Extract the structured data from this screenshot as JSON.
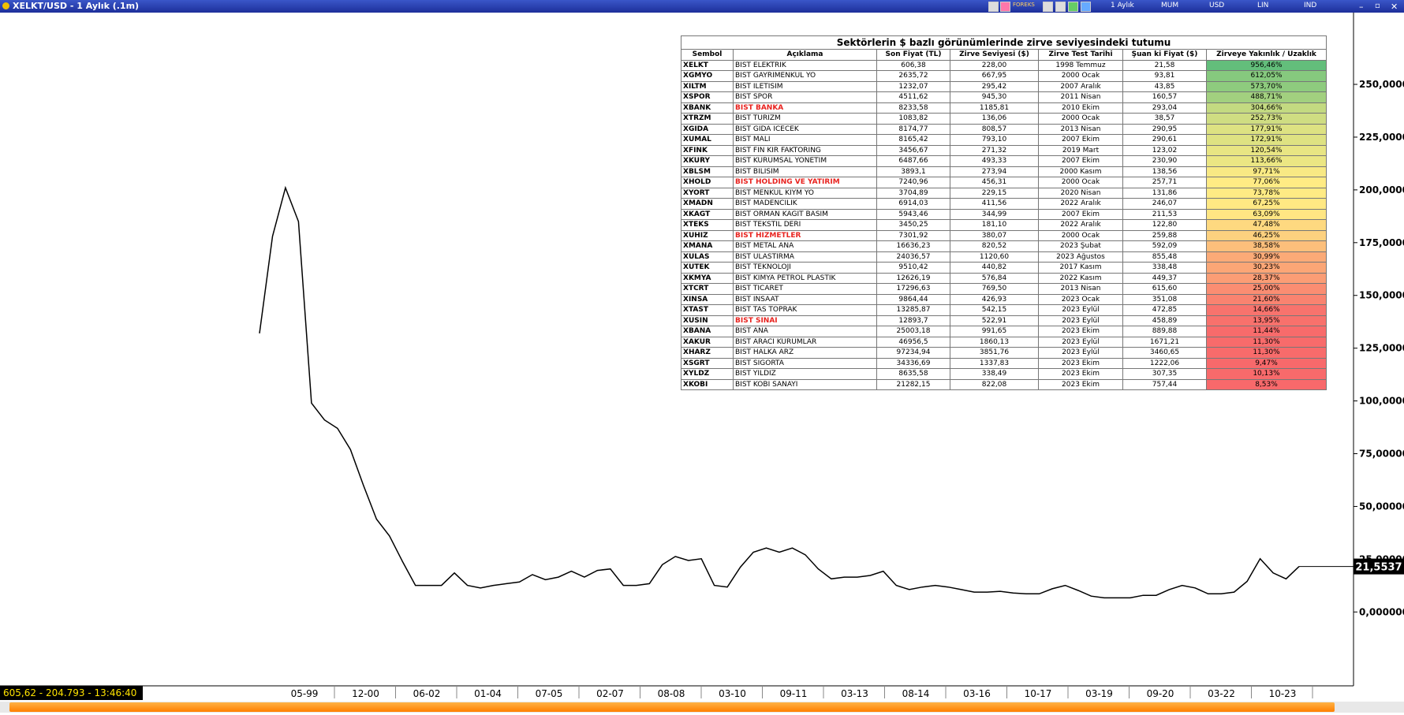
{
  "window": {
    "title": "XELKT/USD - 1 Aylık (.1m)",
    "toolbar": [
      "FOREKS",
      "1 Aylık",
      "MUM",
      "USD",
      "LIN",
      "IND"
    ]
  },
  "status": "605,62 - 204.793 - 13:46:40",
  "chart_data": {
    "type": "line",
    "color": "#000000",
    "x_labels": [
      "05-99",
      "12-00",
      "06-02",
      "01-04",
      "07-05",
      "02-07",
      "08-08",
      "03-10",
      "09-11",
      "03-13",
      "08-14",
      "03-16",
      "10-17",
      "03-19",
      "09-20",
      "03-22",
      "10-23"
    ],
    "values": [
      132,
      178,
      201,
      185,
      99,
      91,
      87,
      77,
      60,
      44,
      36,
      24,
      12.6,
      12.6,
      12.6,
      18.5,
      12.6,
      11.4,
      12.6,
      13.4,
      14.2,
      17.7,
      15.3,
      16.5,
      19.3,
      16.5,
      19.7,
      20.4,
      12.6,
      12.6,
      13.4,
      22.4,
      26.3,
      24.4,
      25.2,
      12.6,
      11.8,
      21.2,
      28.3,
      30.3,
      28.3,
      30.3,
      27.1,
      20.4,
      15.7,
      16.5,
      16.5,
      17.3,
      19.3,
      12.6,
      10.6,
      11.8,
      12.6,
      11.8,
      10.6,
      9.4,
      9.4,
      9.8,
      9.0,
      8.6,
      8.6,
      11.0,
      12.6,
      10.2,
      7.5,
      6.7,
      6.7,
      6.7,
      7.9,
      7.9,
      10.6,
      12.6,
      11.4,
      8.6,
      8.6,
      9.4,
      14.5,
      25.2,
      18.5,
      15.7,
      21.5537
    ],
    "value_labels": {
      "last": "21,5537"
    },
    "ylim": [
      -35,
      284
    ],
    "yticks": [
      {
        "value": 0,
        "label": "0,000000"
      },
      {
        "value": 25,
        "label": "25,00000"
      },
      {
        "value": 50,
        "label": "50,00000"
      },
      {
        "value": 75,
        "label": "75,00000"
      },
      {
        "value": 100,
        "label": "100,0000"
      },
      {
        "value": 125,
        "label": "125,0000"
      },
      {
        "value": 150,
        "label": "150,0000"
      },
      {
        "value": 175,
        "label": "175,0000"
      },
      {
        "value": 200,
        "label": "200,0000"
      },
      {
        "value": 225,
        "label": "225,0000"
      },
      {
        "value": 250,
        "label": "250,0000"
      }
    ]
  },
  "table": {
    "title": "Sektörlerin $ bazlı görünümlerinde zirve seviyesindeki tutumu",
    "header": [
      "Sembol",
      "Açıklama",
      "Son Fiyat (TL)",
      "Zirve Seviyesi ($)",
      "Zirve Test Tarihi",
      "Şuan ki Fiyat ($)",
      "Zirveye Yakınlık /  Uzaklık"
    ],
    "highlight_color": "#e8231f",
    "rows": [
      {
        "cells": [
          "XELKT",
          "BIST ELEKTRIK",
          "606,38",
          "228,00",
          "1998 Temmuz",
          "21,58",
          "956,46%"
        ],
        "fill": "#63be7b"
      },
      {
        "cells": [
          "XGMYO",
          "BIST GAYRIMENKUL YO",
          "2635,72",
          "667,95",
          "2000 Ocak",
          "93,81",
          "612,05%"
        ],
        "fill": "#86c97e"
      },
      {
        "cells": [
          "XILTM",
          "BIST ILETISIM",
          "1232,07",
          "295,42",
          "2007 Aralık",
          "43,85",
          "573,70%"
        ],
        "fill": "#8ecb7e"
      },
      {
        "cells": [
          "XSPOR",
          "BIST SPOR",
          "4511,62",
          "945,30",
          "2011 Nisan",
          "160,57",
          "488,71%"
        ],
        "fill": "#a2d07f"
      },
      {
        "cells": [
          "XBANK",
          "BIST BANKA",
          "8233,58",
          "1185,81",
          "2010 Ekim",
          "293,04",
          "304,66%"
        ],
        "fill": "#c3da81",
        "highlight": true
      },
      {
        "cells": [
          "XTRZM",
          "BIST TURIZM",
          "1083,82",
          "136,06",
          "2000 Ocak",
          "38,57",
          "252,73%"
        ],
        "fill": "#cfdd82"
      },
      {
        "cells": [
          "XGIDA",
          "BIST GIDA ICECEK",
          "8174,77",
          "808,57",
          "2013 Nisan",
          "290,95",
          "177,91%"
        ],
        "fill": "#dde282"
      },
      {
        "cells": [
          "XUMAL",
          "BIST MALI",
          "8165,42",
          "793,10",
          "2007 Ekim",
          "290,61",
          "172,91%"
        ],
        "fill": "#dee282"
      },
      {
        "cells": [
          "XFINK",
          "BIST FIN KIR FAKTORING",
          "3456,67",
          "271,32",
          "2019 Mart",
          "123,02",
          "120,54%"
        ],
        "fill": "#e8e583"
      },
      {
        "cells": [
          "XKURY",
          "BIST KURUMSAL YONETIM",
          "6487,66",
          "493,33",
          "2007 Ekim",
          "230,90",
          "113,66%"
        ],
        "fill": "#ebe683"
      },
      {
        "cells": [
          "XBLSM",
          "BIST BILISIM",
          "3893,1",
          "273,94",
          "2000 Kasım",
          "138,56",
          "97,71%"
        ],
        "fill": "#f8e984"
      },
      {
        "cells": [
          "XHOLD",
          "BIST HOLDING VE YATIRIM",
          "7240,96",
          "456,31",
          "2000 Ocak",
          "257,71",
          "77,06%"
        ],
        "fill": "#ffeb84",
        "highlight": true
      },
      {
        "cells": [
          "XYORT",
          "BIST MENKUL KIYM YO",
          "3704,89",
          "229,15",
          "2020 Nisan",
          "131,86",
          "73,78%"
        ],
        "fill": "#ffeb84"
      },
      {
        "cells": [
          "XMADN",
          "BIST MADENCILIK",
          "6914,03",
          "411,56",
          "2022 Aralık",
          "246,07",
          "67,25%"
        ],
        "fill": "#ffe883"
      },
      {
        "cells": [
          "XKAGT",
          "BIST ORMAN KAGIT BASIM",
          "5943,46",
          "344,99",
          "2007 Ekim",
          "211,53",
          "63,09%"
        ],
        "fill": "#ffe683"
      },
      {
        "cells": [
          "XTEKS",
          "BIST TEKSTIL DERI",
          "3450,25",
          "181,10",
          "2022 Aralık",
          "122,80",
          "47,48%"
        ],
        "fill": "#fed980"
      },
      {
        "cells": [
          "XUHIZ",
          "BIST HIZMETLER",
          "7301,92",
          "380,07",
          "2000 Ocak",
          "259,88",
          "46,25%"
        ],
        "fill": "#fdd17f",
        "highlight": true
      },
      {
        "cells": [
          "XMANA",
          "BIST METAL ANA",
          "16636,23",
          "820,52",
          "2023 Şubat",
          "592,09",
          "38,58%"
        ],
        "fill": "#fcbf7b"
      },
      {
        "cells": [
          "XULAS",
          "BIST ULASTIRMA",
          "24036,57",
          "1120,60",
          "2023 Ağustos",
          "855,48",
          "30,99%"
        ],
        "fill": "#fbaa77"
      },
      {
        "cells": [
          "XUTEK",
          "BIST TEKNOLOJI",
          "9510,42",
          "440,82",
          "2017 Kasım",
          "338,48",
          "30,23%"
        ],
        "fill": "#fba676"
      },
      {
        "cells": [
          "XKMYA",
          "BIST KIMYA PETROL PLASTIK",
          "12626,19",
          "576,84",
          "2022 Kasım",
          "449,37",
          "28,37%"
        ],
        "fill": "#fb9d75"
      },
      {
        "cells": [
          "XTCRT",
          "BIST TICARET",
          "17296,63",
          "769,50",
          "2013 Nisan",
          "615,60",
          "25,00%"
        ],
        "fill": "#fa8d72"
      },
      {
        "cells": [
          "XINSA",
          "BIST INSAAT",
          "9864,44",
          "426,93",
          "2023 Ocak",
          "351,08",
          "21,60%"
        ],
        "fill": "#f98370"
      },
      {
        "cells": [
          "XTAST",
          "BIST TAS TOPRAK",
          "13285,87",
          "542,15",
          "2023 Eylül",
          "472,85",
          "14,66%"
        ],
        "fill": "#f8736d"
      },
      {
        "cells": [
          "XUSIN",
          "BIST SINAI",
          "12893,7",
          "522,91",
          "2023 Eylül",
          "458,89",
          "13,95%"
        ],
        "fill": "#f8716c",
        "highlight": true
      },
      {
        "cells": [
          "XBANA",
          "BIST ANA",
          "25003,18",
          "991,65",
          "2023 Ekim",
          "889,88",
          "11,44%"
        ],
        "fill": "#f86b6b"
      },
      {
        "cells": [
          "XAKUR",
          "BIST ARACI KURUMLAR",
          "46956,5",
          "1860,13",
          "2023 Eylül",
          "1671,21",
          "11,30%"
        ],
        "fill": "#f86b6b"
      },
      {
        "cells": [
          "XHARZ",
          "BIST HALKA ARZ",
          "97234,94",
          "3851,76",
          "2023 Eylül",
          "3460,65",
          "11,30%"
        ],
        "fill": "#f86b6b"
      },
      {
        "cells": [
          "XSGRT",
          "BIST SIGORTA",
          "34336,69",
          "1337,83",
          "2023 Ekim",
          "1222,06",
          "9,47%"
        ],
        "fill": "#f8696b"
      },
      {
        "cells": [
          "XYLDZ",
          "BIST YILDIZ",
          "8635,58",
          "338,49",
          "2023 Ekim",
          "307,35",
          "10,13%"
        ],
        "fill": "#f86a6b"
      },
      {
        "cells": [
          "XKOBI",
          "BIST KOBI SANAYI",
          "21282,15",
          "822,08",
          "2023 Ekim",
          "757,44",
          "8,53%"
        ],
        "fill": "#f8696b"
      }
    ]
  }
}
